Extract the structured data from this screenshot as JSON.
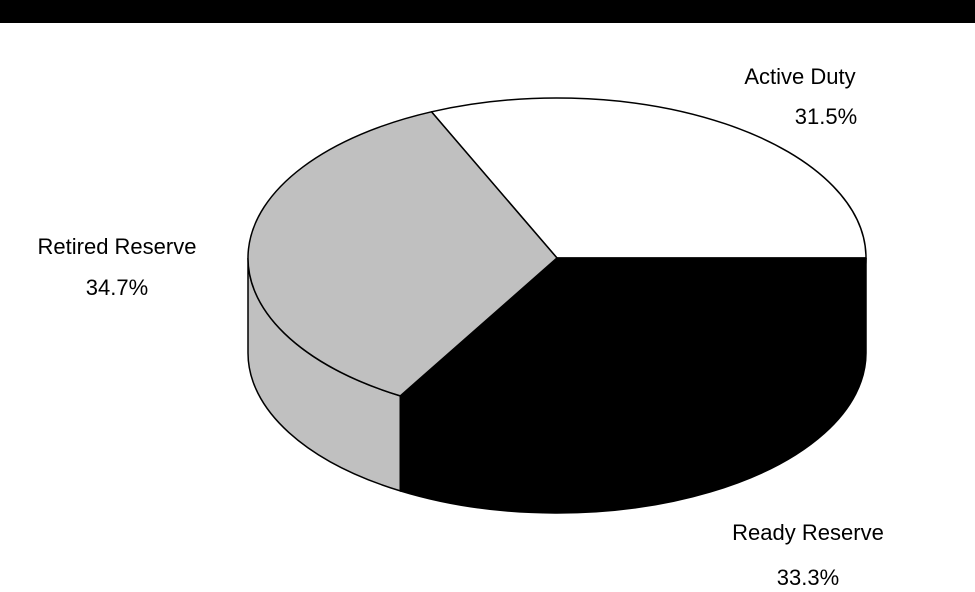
{
  "colors": {
    "top_bar": "#000000",
    "outline": "#000000",
    "background": "#ffffff"
  },
  "chart_data": {
    "type": "pie",
    "style": "3d",
    "slices": [
      {
        "label": "Active Duty",
        "value": 31.5,
        "value_label": "31.5%",
        "color": "#ffffff"
      },
      {
        "label": "Ready Reserve",
        "value": 33.3,
        "value_label": "33.3%",
        "color": "#000000"
      },
      {
        "label": "Retired Reserve",
        "value": 34.7,
        "value_label": "34.7%",
        "color": "#c0c0c0"
      }
    ]
  }
}
